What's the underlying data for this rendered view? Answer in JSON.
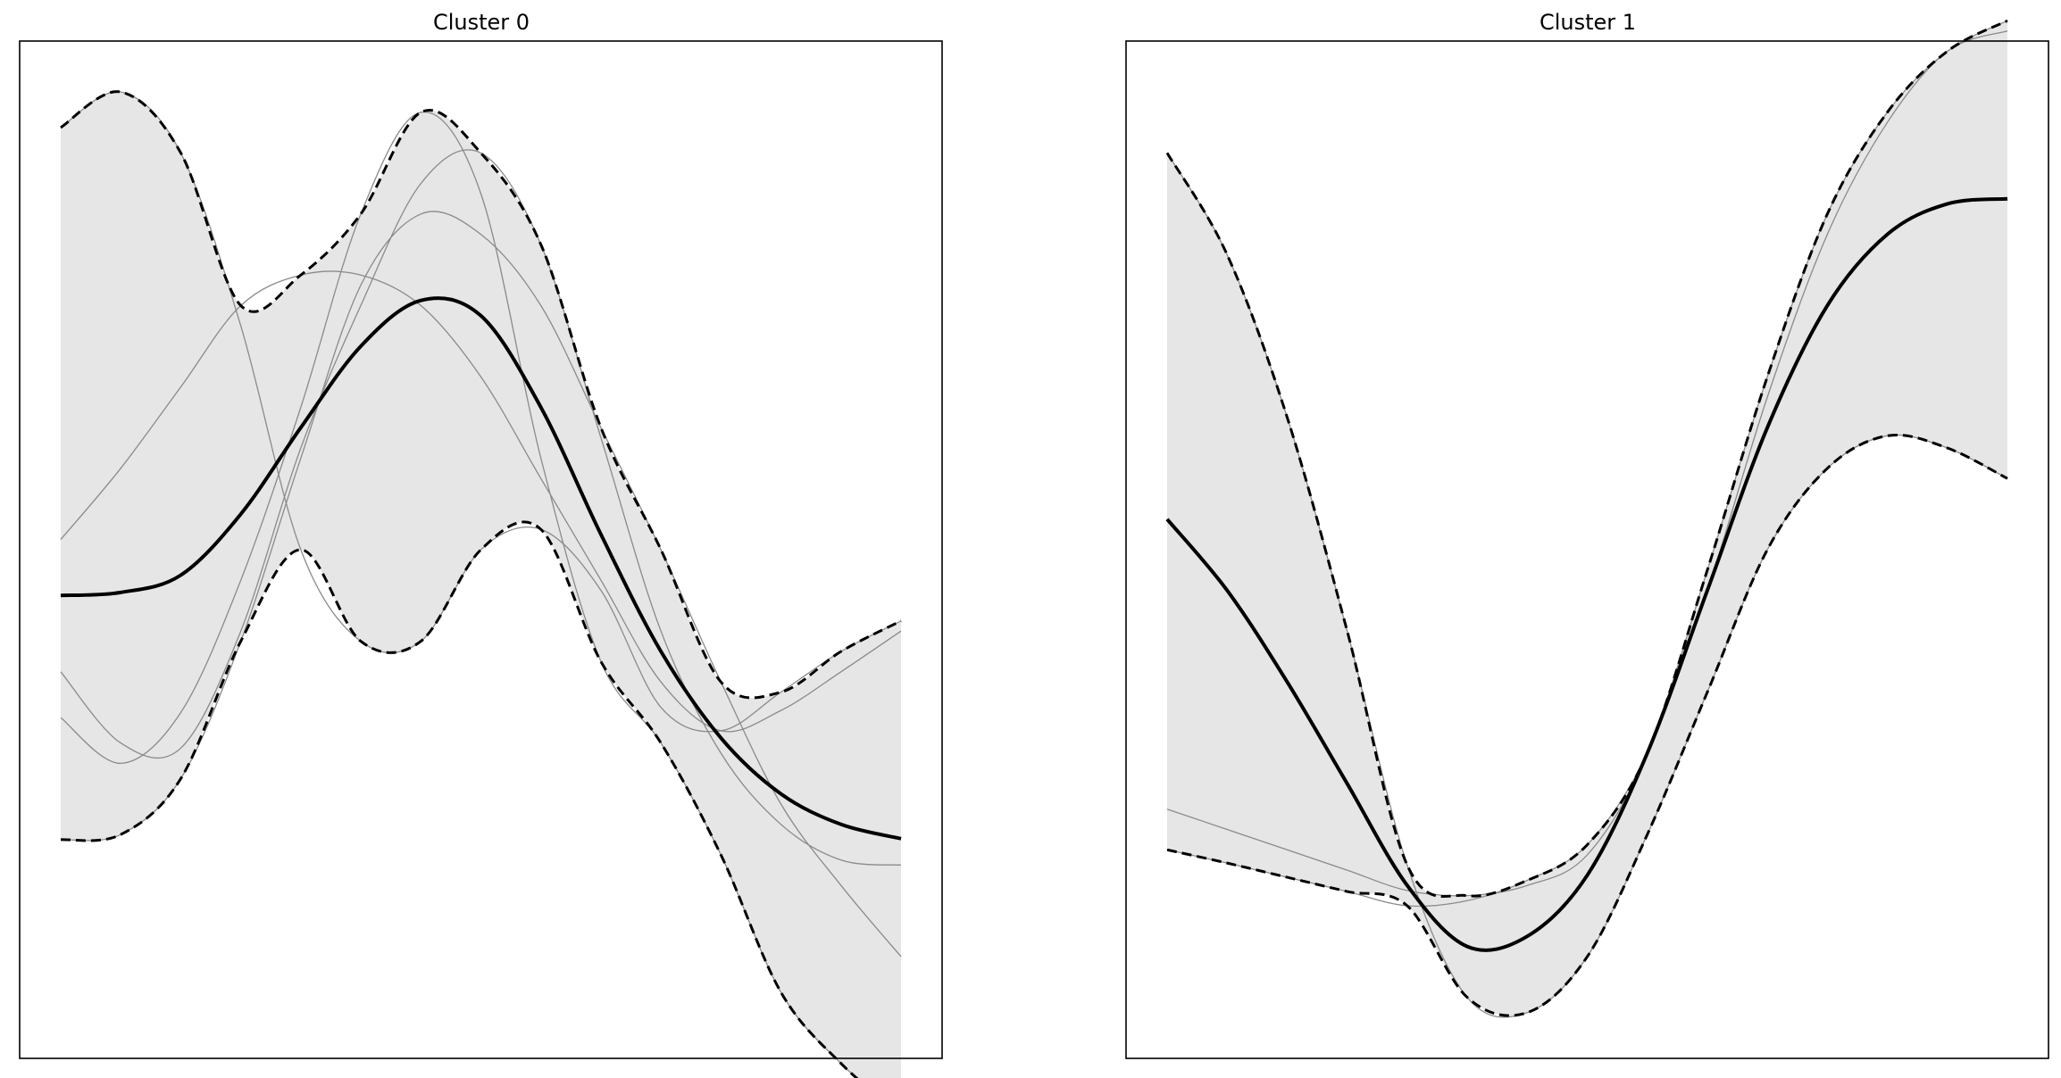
{
  "chart_data": [
    {
      "type": "line",
      "title": "Cluster 0",
      "xlim": [
        0,
        1
      ],
      "ylim": [
        0,
        1
      ],
      "grid": false,
      "axes_visible": false,
      "colors": {
        "member": "#8a8a8a",
        "mean": "#000000",
        "band_fill": "#e6e6e6",
        "band_edge": "#000000"
      },
      "x": [
        0,
        0.0714,
        0.1429,
        0.2143,
        0.2857,
        0.3571,
        0.4286,
        0.5,
        0.5714,
        0.6429,
        0.7143,
        0.7857,
        0.8571,
        0.9286,
        1
      ],
      "members": [
        [
          0.915,
          0.95,
          0.89,
          0.72,
          0.5,
          0.41,
          0.41,
          0.5,
          0.52,
          0.46,
          0.345,
          0.322,
          0.36,
          0.4,
          0.43
        ],
        [
          0.51,
          0.58,
          0.66,
          0.74,
          0.77,
          0.77,
          0.74,
          0.67,
          0.57,
          0.47,
          0.37,
          0.322,
          0.342,
          0.38,
          0.42
        ],
        [
          0.335,
          0.29,
          0.34,
          0.47,
          0.64,
          0.83,
          0.93,
          0.85,
          0.59,
          0.39,
          0.31,
          0.2,
          0.065,
          -0.005,
          -0.055
        ],
        [
          0.38,
          0.31,
          0.305,
          0.42,
          0.6,
          0.74,
          0.86,
          0.89,
          0.8,
          0.61,
          0.42,
          0.3,
          0.23,
          0.195,
          0.19
        ],
        [
          0.215,
          0.22,
          0.275,
          0.41,
          0.59,
          0.76,
          0.83,
          0.81,
          0.74,
          0.62,
          0.5,
          0.37,
          0.25,
          0.17,
          0.1
        ]
      ],
      "mean": [
        0.455,
        0.458,
        0.475,
        0.535,
        0.62,
        0.7,
        0.745,
        0.73,
        0.64,
        0.515,
        0.4,
        0.315,
        0.26,
        0.23,
        0.216
      ]
    },
    {
      "type": "line",
      "title": "Cluster 1",
      "xlim": [
        0,
        1
      ],
      "ylim": [
        0,
        1
      ],
      "grid": false,
      "axes_visible": false,
      "colors": {
        "member": "#8a8a8a",
        "mean": "#000000",
        "band_fill": "#e6e6e6",
        "band_edge": "#000000"
      },
      "x": [
        0,
        0.0714,
        0.1429,
        0.2143,
        0.2857,
        0.3571,
        0.4286,
        0.5,
        0.5714,
        0.6429,
        0.7143,
        0.7857,
        0.8571,
        0.9286,
        1
      ],
      "members": [
        [
          0.89,
          0.79,
          0.63,
          0.42,
          0.19,
          0.06,
          0.045,
          0.1,
          0.22,
          0.36,
          0.5,
          0.58,
          0.612,
          0.6,
          0.57
        ],
        [
          0.245,
          0.225,
          0.205,
          0.185,
          0.165,
          0.16,
          0.17,
          0.2,
          0.3,
          0.48,
          0.67,
          0.83,
          0.93,
          0.99,
          1.02
        ],
        [
          0.205,
          0.192,
          0.178,
          0.164,
          0.15,
          0.155,
          0.175,
          0.21,
          0.3,
          0.46,
          0.65,
          0.81,
          0.92,
          0.99,
          1.01
        ]
      ],
      "mean": [
        0.53,
        0.46,
        0.37,
        0.27,
        0.17,
        0.11,
        0.12,
        0.18,
        0.3,
        0.46,
        0.62,
        0.74,
        0.81,
        0.84,
        0.845
      ]
    }
  ]
}
